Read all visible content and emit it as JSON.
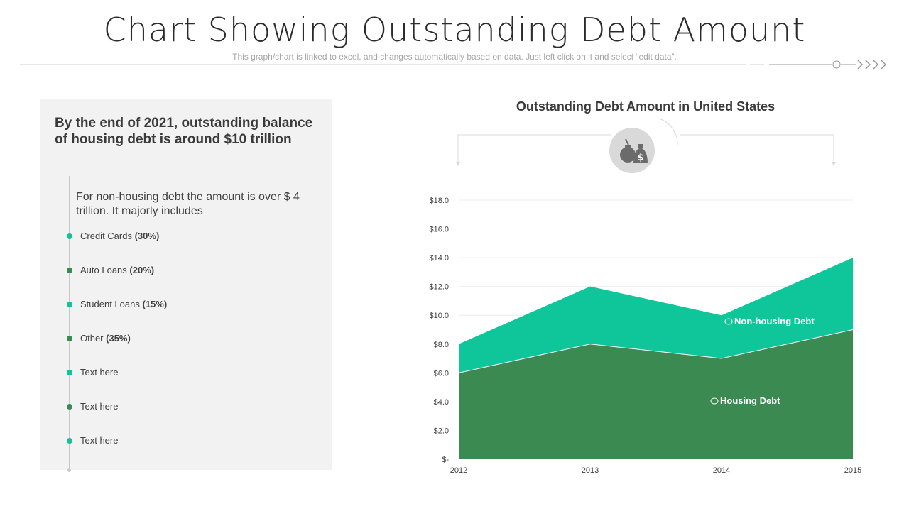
{
  "header": {
    "title": "Chart Showing Outstanding Debt Amount",
    "subtitle": "This graph/chart is linked to excel, and changes automatically based on data. Just left click on it and select “edit data”."
  },
  "left_panel": {
    "headline": "By the end of 2021, outstanding balance of housing debt is around $10 trillion",
    "intro": "For non-housing  debt the amount is over $ 4 trillion. It majorly includes",
    "items": [
      {
        "label": "Credit Cards",
        "pct": "(30%)",
        "dot_color": "#14c198"
      },
      {
        "label": "Auto Loans",
        "pct": "(20%)",
        "dot_color": "#3a8a52"
      },
      {
        "label": "Student Loans",
        "pct": "(15%)",
        "dot_color": "#14c198"
      },
      {
        "label": "Other",
        "pct": "(35%)",
        "dot_color": "#3a8a52"
      },
      {
        "label": "Text here",
        "pct": "",
        "dot_color": "#14c198"
      },
      {
        "label": "Text here",
        "pct": "",
        "dot_color": "#3a8a52"
      },
      {
        "label": "Text here",
        "pct": "",
        "dot_color": "#14c198"
      }
    ]
  },
  "icons": {
    "chart_header_icon": "money-bags-icon"
  },
  "chart_data": {
    "type": "area",
    "stacked": true,
    "title": "Outstanding Debt Amount in United States",
    "xlabel": "",
    "ylabel": "",
    "categories": [
      "2012",
      "2013",
      "2014",
      "2015"
    ],
    "ylim": [
      0,
      18
    ],
    "yticks": [
      0,
      2,
      4,
      6,
      8,
      10,
      12,
      14,
      16,
      18
    ],
    "ytick_labels": [
      "$-",
      "$2.0",
      "$4.0",
      "$6.0",
      "$8.0",
      "$10.0",
      "$12.0",
      "$14.0",
      "$16.0",
      "$18.0"
    ],
    "grid": true,
    "series": [
      {
        "name": "Housing Debt",
        "values": [
          6,
          8,
          7,
          9
        ],
        "color": "#3a8a52"
      },
      {
        "name": "Non-housing  Debt",
        "values": [
          2,
          4,
          3,
          5
        ],
        "color": "#0fc69a"
      }
    ]
  }
}
